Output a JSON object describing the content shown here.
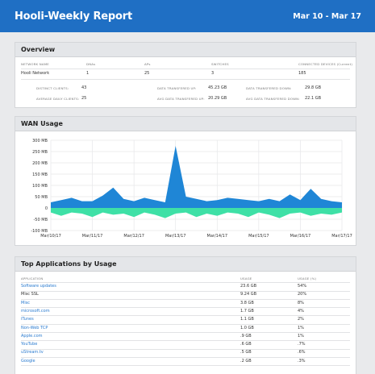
{
  "header": {
    "title": "Hooli-Weekly Report",
    "date_range": "Mar 10 - Mar 17"
  },
  "overview": {
    "title": "Overview",
    "columns": [
      "NETWORK NAME",
      "DNAs",
      "APs",
      "SWITCHES",
      "CONNECTED DEVICES (Current)"
    ],
    "row": [
      "Hooli Network",
      "1",
      "25",
      "3",
      "185"
    ],
    "stats": [
      {
        "label": "DISTINCT CLIENTS:",
        "value": "43"
      },
      {
        "label": "AVERAGE DAILY CLIENTS:",
        "value": "25"
      },
      {
        "label": "DATA TRANSFERED UP:",
        "value": "45.23 GB"
      },
      {
        "label": "AVG DATA TRANSFERED UP:",
        "value": "20.29 GB"
      },
      {
        "label": "DATA TRANSFERED DOWN:",
        "value": "29.8 GB"
      },
      {
        "label": "AVG DATA TRANSFERED DOWN:",
        "value": "22.1 GB"
      }
    ]
  },
  "wan": {
    "title": "WAN Usage",
    "y_ticks": [
      "300 MB",
      "250 MB",
      "200 MB",
      "150 MB",
      "100 MB",
      "50 MB",
      "0",
      "-50 MB",
      "-100 MB"
    ],
    "x_ticks": [
      "Mar/10/17",
      "Mar/11/17",
      "Mar/12/17",
      "Mar/13/17",
      "Mar/14/17",
      "Mar/15/17",
      "Mar/16/17",
      "Mar/17/17"
    ],
    "colors": {
      "upload": "#1f86d6",
      "download": "#3ee0a6"
    }
  },
  "chart_data": {
    "type": "area",
    "title": "",
    "xlabel": "",
    "ylabel": "",
    "x": [
      0,
      0.25,
      0.5,
      0.75,
      1,
      1.25,
      1.5,
      1.75,
      2,
      2.25,
      2.5,
      2.75,
      3,
      3.25,
      3.5,
      3.75,
      4,
      4.25,
      4.5,
      4.75,
      5,
      5.25,
      5.5,
      5.75,
      6,
      6.25,
      6.5,
      6.75,
      7
    ],
    "ylim": [
      -100,
      300
    ],
    "series": [
      {
        "values": [
          25,
          35,
          45,
          30,
          30,
          55,
          90,
          40,
          30,
          45,
          35,
          25,
          275,
          50,
          40,
          30,
          35,
          45,
          40,
          35,
          30,
          40,
          30,
          60,
          35,
          85,
          40,
          30,
          25
        ]
      },
      {
        "values": [
          -20,
          -35,
          -20,
          -25,
          -40,
          -20,
          -30,
          -25,
          -40,
          -20,
          -30,
          -45,
          -25,
          -20,
          -40,
          -25,
          -35,
          -20,
          -25,
          -40,
          -20,
          -30,
          -45,
          -25,
          -20,
          -35,
          -25,
          -30,
          -20
        ]
      }
    ]
  },
  "apps": {
    "title": "Top Applications by Usage",
    "columns": [
      "APPLICATION",
      "USAGE",
      "USAGE (%)"
    ],
    "rows": [
      {
        "name": "Software updates",
        "usage": "23.6 GB",
        "pct": "54%",
        "link": true
      },
      {
        "name": "Misc SSL",
        "usage": "9.24 GB",
        "pct": "20%",
        "link": false
      },
      {
        "name": "Misc",
        "usage": "3.8 GB",
        "pct": "8%",
        "link": true
      },
      {
        "name": "microsoft.com",
        "usage": "1.7 GB",
        "pct": "4%",
        "link": true
      },
      {
        "name": "iTunes",
        "usage": "1.1 GB",
        "pct": "2%",
        "link": true
      },
      {
        "name": "Non-Web TCP",
        "usage": "1.0 GB",
        "pct": "1%",
        "link": true
      },
      {
        "name": "Apple.com",
        "usage": ".9 GB",
        "pct": "1%",
        "link": true
      },
      {
        "name": "YouTube",
        "usage": ".6 GB",
        "pct": ".7%",
        "link": true
      },
      {
        "name": "uStream.tv",
        "usage": ".5 GB",
        "pct": ".6%",
        "link": true
      },
      {
        "name": "Google",
        "usage": ".2 GB",
        "pct": ".3%",
        "link": true
      }
    ]
  }
}
